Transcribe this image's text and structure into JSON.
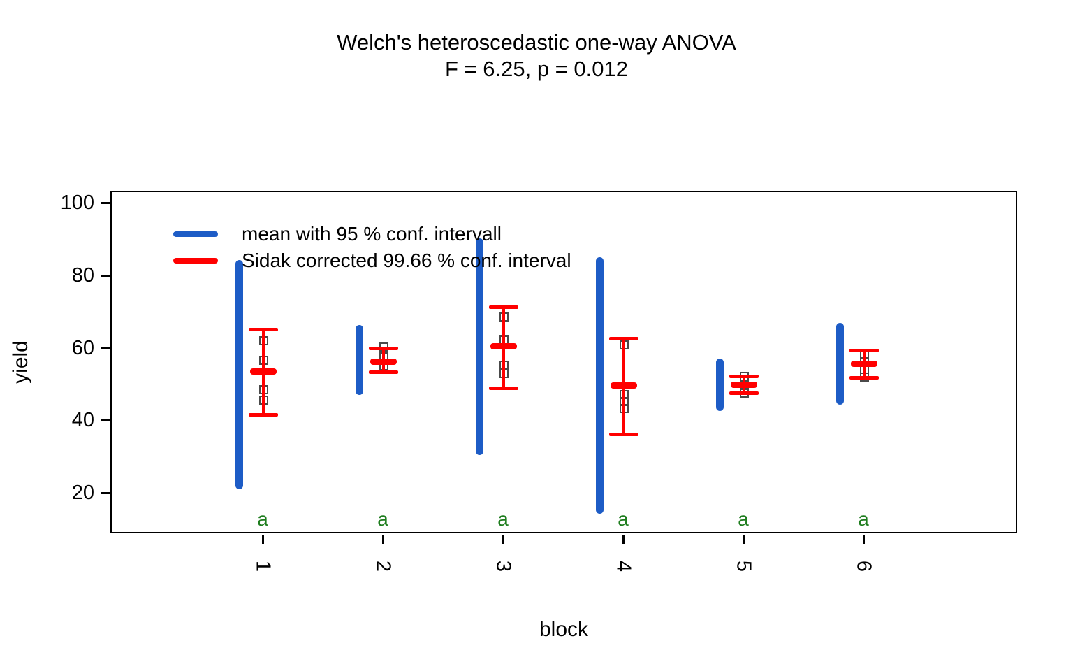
{
  "colors": {
    "blue": "#1D5CC6",
    "red": "#FF0000",
    "green": "#1E7D1E",
    "point_border": "#4a4a4a",
    "axis": "#000000"
  },
  "chart_data": {
    "type": "scatter",
    "title": "Welch's heteroscedastic one-way ANOVA",
    "subtitle": "F = 6.25, p = 0.012",
    "xlabel": "block",
    "ylabel": "yield",
    "ylim": [
      9,
      103
    ],
    "yticks": [
      20,
      40,
      60,
      80,
      100
    ],
    "xticks": [
      "1",
      "2",
      "3",
      "4",
      "5",
      "6"
    ],
    "grid": false,
    "legend_position": "top-left-inside",
    "legend": [
      "mean with 95 % conf. intervall",
      "Sidak corrected 99.66 % conf. interval"
    ],
    "groups": [
      {
        "block": "1",
        "letter": "a",
        "mean": 53.5,
        "ci95": [
          21.0,
          84.2
        ],
        "sidak_ci": [
          41.6,
          65.2
        ],
        "points": [
          62.0,
          56.6,
          48.5,
          45.6
        ]
      },
      {
        "block": "2",
        "letter": "a",
        "mean": 56.3,
        "ci95": [
          47.0,
          66.3
        ],
        "sidak_ci": [
          53.3,
          60.0
        ],
        "points": [
          60.2,
          57.5,
          55.0
        ]
      },
      {
        "block": "3",
        "letter": "a",
        "mean": 60.4,
        "ci95": [
          30.5,
          90.1
        ],
        "sidak_ci": [
          49.0,
          71.2
        ],
        "points": [
          68.6,
          62.3,
          55.2,
          53.0
        ]
      },
      {
        "block": "4",
        "letter": "a",
        "mean": 49.6,
        "ci95": [
          14.3,
          85.0
        ],
        "sidak_ci": [
          36.2,
          62.6
        ],
        "points": [
          60.9,
          47.2,
          45.2,
          43.3
        ]
      },
      {
        "block": "5",
        "letter": "a",
        "mean": 49.8,
        "ci95": [
          42.5,
          57.0
        ],
        "sidak_ci": [
          47.5,
          52.1
        ],
        "points": [
          52.1,
          49.8,
          47.6
        ]
      },
      {
        "block": "6",
        "letter": "a",
        "mean": 55.7,
        "ci95": [
          44.2,
          66.9
        ],
        "sidak_ci": [
          51.8,
          59.4
        ],
        "points": [
          58.2,
          56.3,
          54.1,
          52.0
        ]
      }
    ]
  }
}
